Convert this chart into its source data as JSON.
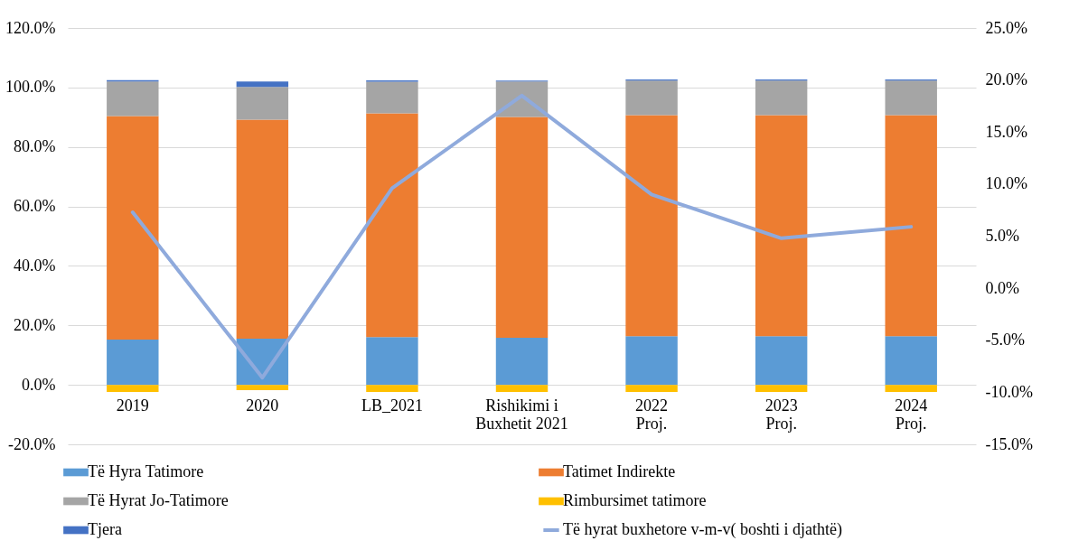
{
  "chart_data": {
    "type": "bar",
    "stacked": true,
    "categories": [
      "2019",
      "2020",
      "LB_2021",
      "Rishikimi i\nBuxhetit 2021",
      "2022\nProj.",
      "2023\nProj.",
      "2024\nProj."
    ],
    "series": [
      {
        "name": "Të Hyra Tatimore",
        "color": "#5b9bd5",
        "values": [
          15.2,
          15.5,
          16.1,
          15.8,
          16.4,
          16.4,
          16.4
        ]
      },
      {
        "name": "Tatimet Indirekte",
        "color": "#ed7d31",
        "values": [
          75.2,
          73.7,
          75.2,
          74.3,
          74.3,
          74.3,
          74.3
        ]
      },
      {
        "name": "Të Hyrat Jo-Tatimore",
        "color": "#a5a5a5",
        "values": [
          11.6,
          11.0,
          10.6,
          11.9,
          11.6,
          11.6,
          11.6
        ]
      },
      {
        "name": "Rimbursimet tatimore",
        "color": "#ffc000",
        "values": [
          -2.4,
          -1.8,
          -2.4,
          -2.4,
          -2.4,
          -2.4,
          -2.4
        ]
      },
      {
        "name": "Tjera",
        "color": "#4472c4",
        "values": [
          0.5,
          1.8,
          0.5,
          0.3,
          0.4,
          0.4,
          0.4
        ]
      },
      {
        "name": "Të hyrat buxhetore v-m-v( boshti i djathtë)",
        "color": "#8faadc",
        "type": "line",
        "axis": "y2",
        "values": [
          7.3,
          -8.6,
          9.6,
          18.5,
          9.0,
          4.8,
          5.9
        ]
      }
    ],
    "ylim": [
      -20,
      120
    ],
    "yticks": [
      {
        "value": -20,
        "label": "-20.0%"
      },
      {
        "value": 0,
        "label": "0.0%"
      },
      {
        "value": 20,
        "label": "20.0%"
      },
      {
        "value": 40,
        "label": "40.0%"
      },
      {
        "value": 60,
        "label": "60.0%"
      },
      {
        "value": 80,
        "label": "80.0%"
      },
      {
        "value": 100,
        "label": "100.0%"
      },
      {
        "value": 120,
        "label": "120.0%"
      }
    ],
    "y2lim": [
      -15,
      25
    ],
    "y2ticks": [
      {
        "value": -15,
        "label": "-15.0%"
      },
      {
        "value": -10,
        "label": "-10.0%"
      },
      {
        "value": -5,
        "label": "-5.0%"
      },
      {
        "value": 0,
        "label": "0.0%"
      },
      {
        "value": 5,
        "label": "5.0%"
      },
      {
        "value": 10,
        "label": "10.0%"
      },
      {
        "value": 15,
        "label": "15.0%"
      },
      {
        "value": 20,
        "label": "20.0%"
      },
      {
        "value": 25,
        "label": "25.0%"
      }
    ],
    "grid": "y",
    "legend": "bottom",
    "line_style": "solid",
    "marker": "none"
  }
}
